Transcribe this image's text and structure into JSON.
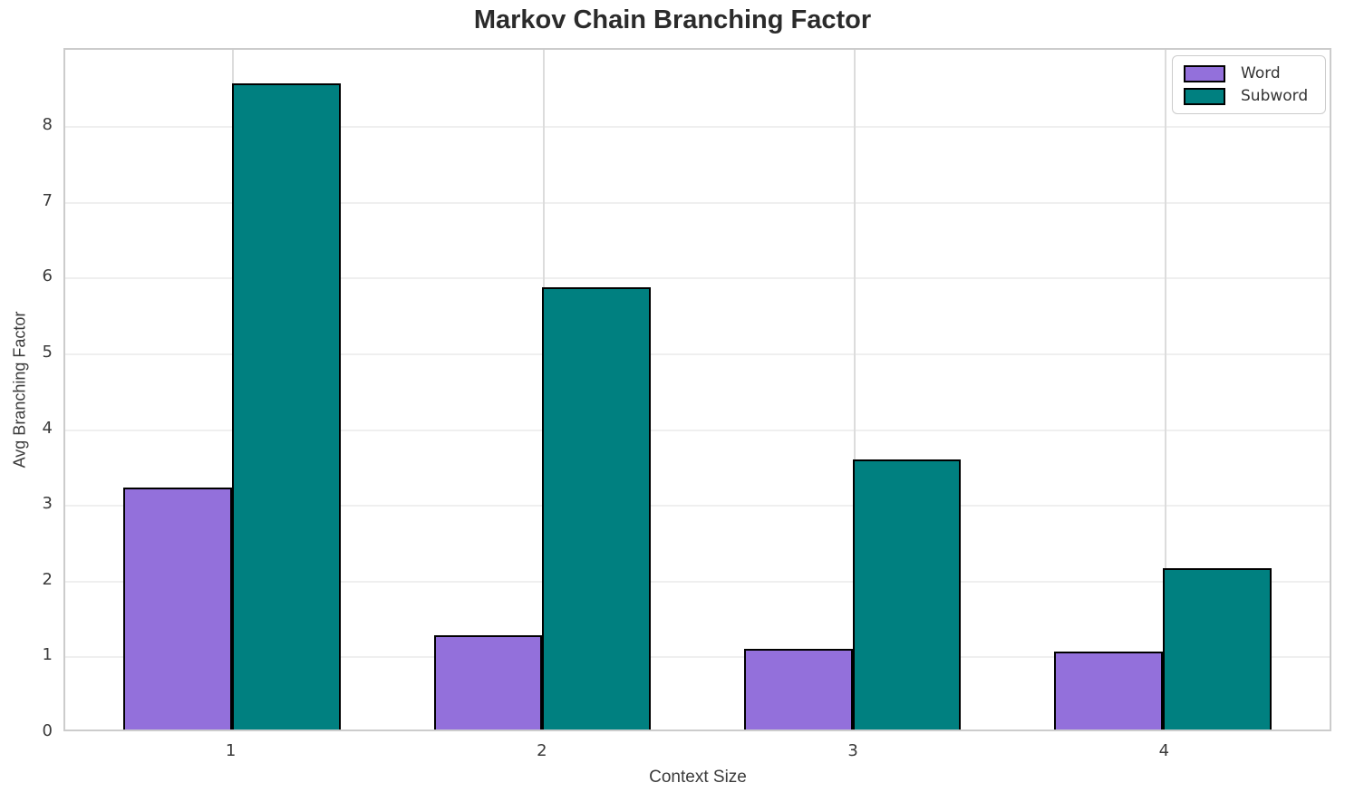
{
  "chart_data": {
    "type": "bar",
    "title": "Markov Chain Branching Factor",
    "xlabel": "Context Size",
    "ylabel": "Avg Branching Factor",
    "categories": [
      "1",
      "2",
      "3",
      "4"
    ],
    "series": [
      {
        "name": "Word",
        "color": "#9370DB",
        "values": [
          3.21,
          1.25,
          1.07,
          1.03
        ]
      },
      {
        "name": "Subword",
        "color": "#008080",
        "values": [
          8.57,
          5.87,
          3.58,
          2.14
        ]
      }
    ],
    "ylim": [
      0,
      9.02
    ],
    "yticks": [
      0,
      1,
      2,
      3,
      4,
      5,
      6,
      7,
      8
    ],
    "grid": true,
    "legend_position": "upper right",
    "bar_edge_color": "#000000",
    "background_color": "#ffffff"
  }
}
